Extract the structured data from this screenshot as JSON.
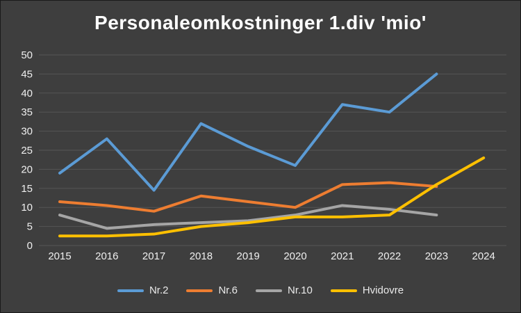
{
  "colors": {
    "background": "#3e3e3e",
    "grid": "#555555",
    "text": "#efefef",
    "title": "#ffffff"
  },
  "chart_data": {
    "type": "line",
    "title": "Personaleomkostninger 1.div 'mio'",
    "categories": [
      "2015",
      "2016",
      "2017",
      "2018",
      "2019",
      "2020",
      "2021",
      "2022",
      "2023",
      "2024"
    ],
    "series": [
      {
        "name": "Nr.2",
        "color": "#5B9BD5",
        "values": [
          19,
          28,
          14.5,
          32,
          26,
          21,
          37,
          35,
          45,
          null
        ]
      },
      {
        "name": "Nr.6",
        "color": "#ED7D31",
        "values": [
          11.5,
          10.5,
          9,
          13,
          11.5,
          10,
          16,
          16.5,
          15.5,
          null
        ]
      },
      {
        "name": "Nr.10",
        "color": "#A5A5A5",
        "values": [
          8,
          4.5,
          5.5,
          6,
          6.5,
          8,
          10.5,
          9.5,
          8,
          null
        ]
      },
      {
        "name": "Hvidovre",
        "color": "#FFC000",
        "values": [
          2.5,
          2.5,
          3,
          5,
          6,
          7.5,
          7.5,
          8,
          16,
          23
        ]
      }
    ],
    "ylim": [
      0,
      50
    ],
    "ytick_step": 5,
    "grid": true,
    "legend_position": "bottom"
  }
}
